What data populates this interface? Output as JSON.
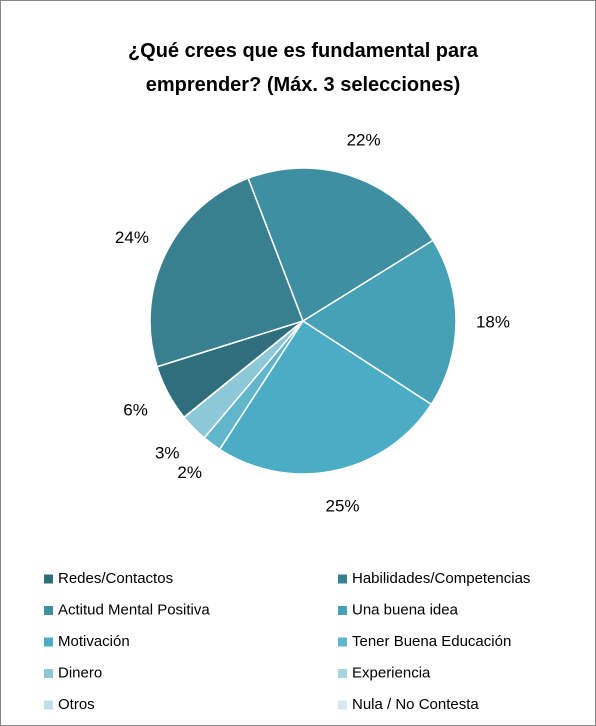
{
  "chart_data": {
    "type": "pie",
    "title": "¿Qué crees que es fundamental para emprender? (Máx. 3 selecciones)",
    "categories": [
      "Redes/Contactos",
      "Habilidades/Competencias",
      "Actitud Mental Positiva",
      "Una buena idea",
      "Motivación",
      "Tener Buena Educación",
      "Dinero",
      "Experiencia",
      "Otros",
      "Nula / No Contesta"
    ],
    "values": [
      6,
      24,
      22,
      18,
      25,
      2,
      3,
      0,
      0,
      0
    ],
    "value_labels": [
      "6%",
      "24%",
      "22%",
      "18%",
      "25%",
      "2%",
      "3%",
      null,
      null,
      null
    ],
    "colors": [
      "#2f6e7d",
      "#387f90",
      "#3f8fa3",
      "#46a0b6",
      "#4bacc6",
      "#62b6cc",
      "#8cc8d8",
      "#a8d5e1",
      "#bfdfe9",
      "#d4e9f0"
    ],
    "legend": "bottom"
  }
}
